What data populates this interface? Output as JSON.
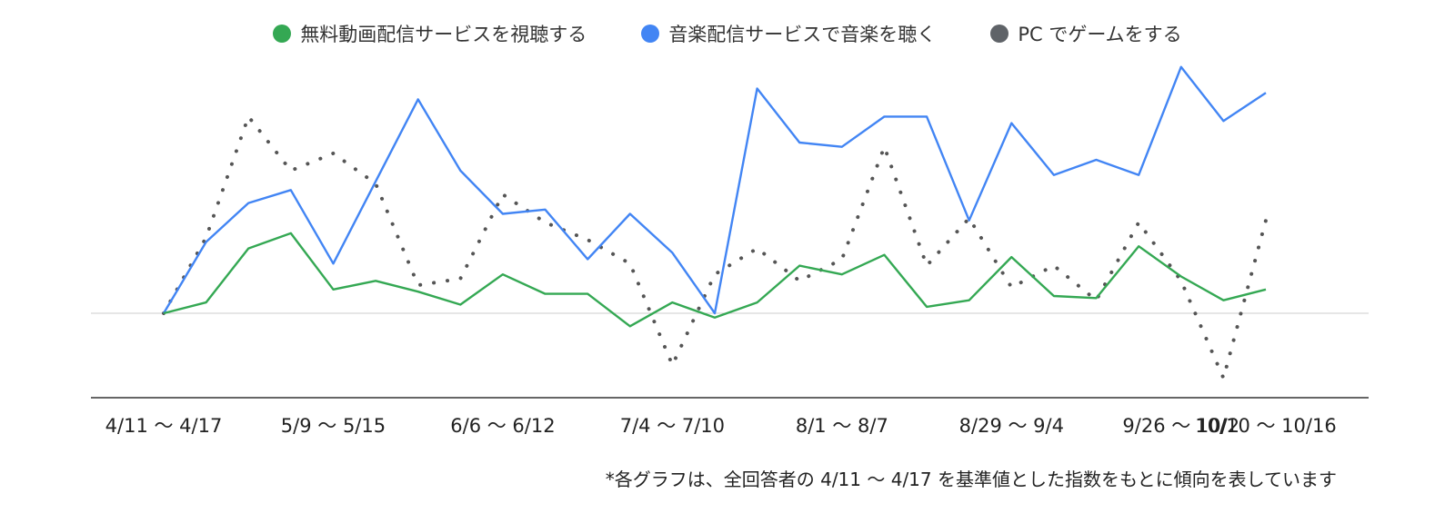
{
  "chart_data": {
    "type": "line",
    "x": [
      "4/11 〜 4/17",
      "",
      "",
      "",
      "5/9 〜 5/15",
      "",
      "",
      "",
      "6/6 〜 6/12",
      "",
      "",
      "",
      "7/4 〜 7/10",
      "",
      "",
      "",
      "8/1 〜 8/7",
      "",
      "",
      "",
      "8/29 〜 9/4",
      "",
      "",
      "",
      "9/26 〜 10/2",
      "",
      "10/10 〜 10/16"
    ],
    "tick_labels": [
      "4/11 〜 4/17",
      "5/9 〜 5/15",
      "6/6 〜 6/12",
      "7/4 〜 7/10",
      "8/1 〜 8/7",
      "8/29 〜 9/4",
      "9/26 〜 10/2",
      "10/10 〜 10/16"
    ],
    "ylim": [
      -40,
      110
    ],
    "baseline": 0,
    "series": [
      {
        "name": "無料動画配信サービスを視聴する",
        "color": "#34a853",
        "style": "solid",
        "values": [
          0,
          5,
          30,
          37,
          11,
          15,
          10,
          4,
          18,
          9,
          9,
          -6,
          5,
          -2,
          5,
          22,
          18,
          27,
          3,
          6,
          26,
          8,
          7,
          31,
          17,
          6,
          11
        ]
      },
      {
        "name": "音楽配信サービスで音楽を聴く",
        "color": "#4285f4",
        "style": "solid",
        "values": [
          0,
          33,
          51,
          57,
          23,
          61,
          99,
          66,
          46,
          48,
          25,
          46,
          28,
          0,
          104,
          79,
          77,
          91,
          91,
          43,
          88,
          64,
          71,
          64,
          114,
          89,
          102
        ]
      },
      {
        "name": "PC でゲームをする",
        "color": "#555555",
        "style": "dotted",
        "values": [
          0,
          35,
          91,
          66,
          74,
          60,
          13,
          16,
          55,
          42,
          34,
          23,
          -24,
          18,
          30,
          15,
          25,
          77,
          22,
          44,
          12,
          22,
          6,
          42,
          15,
          -30,
          43
        ]
      }
    ]
  },
  "legend": {
    "items": [
      {
        "label": "無料動画配信サービスを視聴する",
        "color": "#34a853"
      },
      {
        "label": "音楽配信サービスで音楽を聴く",
        "color": "#4285f4"
      },
      {
        "label": "PC でゲームをする",
        "color": "#5f6368"
      }
    ]
  },
  "footnote": "*各グラフは、全回答者の 4/11 〜 4/17 を基準値とした指数をもとに傾向を表しています"
}
